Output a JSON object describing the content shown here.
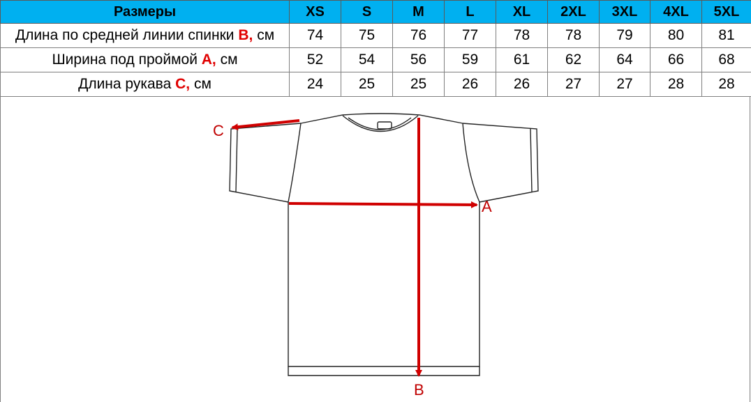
{
  "table": {
    "header_label": "Размеры",
    "sizes": [
      "XS",
      "S",
      "M",
      "L",
      "XL",
      "2XL",
      "3XL",
      "4XL",
      "5XL"
    ],
    "rows": [
      {
        "label_pre": "Длина по средней линии спинки ",
        "letter": "B,",
        "label_post": " см",
        "values": [
          "74",
          "75",
          "76",
          "77",
          "78",
          "78",
          "79",
          "80",
          "81"
        ]
      },
      {
        "label_pre": "Ширина под проймой ",
        "letter": "A,",
        "label_post": " см",
        "values": [
          "52",
          "54",
          "56",
          "59",
          "61",
          "62",
          "64",
          "66",
          "68"
        ]
      },
      {
        "label_pre": "Длина рукава ",
        "letter": "C,",
        "label_post": " см",
        "values": [
          "24",
          "25",
          "25",
          "26",
          "26",
          "27",
          "27",
          "28",
          "28"
        ]
      }
    ]
  },
  "diagram": {
    "label_a": "A",
    "label_b": "B",
    "label_c": "C"
  },
  "colors": {
    "header_bg": "#00b0f0",
    "accent": "#e00000",
    "arrow": "#d00000"
  }
}
